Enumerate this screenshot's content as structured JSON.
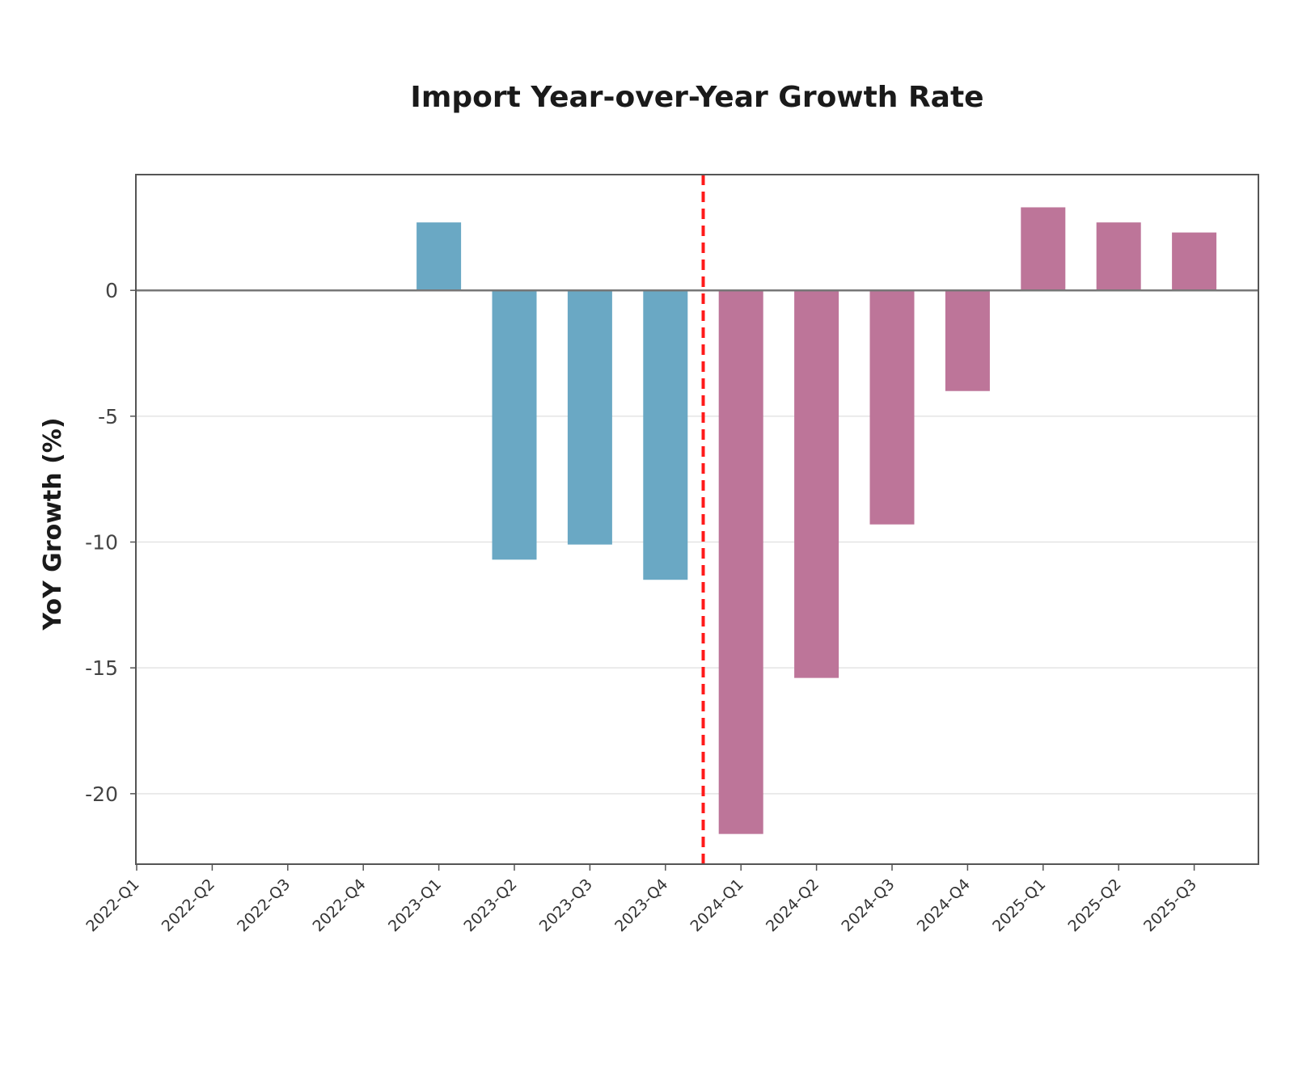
{
  "chart_data": {
    "type": "bar",
    "title": "Import Year-over-Year Growth Rate",
    "xlabel": "",
    "ylabel": "YoY Growth (%)",
    "ylim": [
      -22.8,
      4.6
    ],
    "yticks": [
      0,
      -5,
      -10,
      -15,
      -20
    ],
    "ytick_labels": [
      "0",
      "-5",
      "-10",
      "-15",
      "-20"
    ],
    "grid": true,
    "categories": [
      "2022-Q1",
      "2022-Q2",
      "2022-Q3",
      "2022-Q4",
      "2023-Q1",
      "2023-Q2",
      "2023-Q3",
      "2023-Q4",
      "2024-Q1",
      "2024-Q2",
      "2024-Q3",
      "2024-Q4",
      "2025-Q1",
      "2025-Q2",
      "2025-Q3"
    ],
    "values": [
      null,
      null,
      null,
      null,
      2.7,
      -10.7,
      -10.1,
      -11.5,
      -21.6,
      -15.4,
      -9.3,
      -4.0,
      3.3,
      2.7,
      2.3
    ],
    "bar_color_groups": {
      "before": {
        "categories": [
          "2023-Q1",
          "2023-Q2",
          "2023-Q3",
          "2023-Q4"
        ],
        "color": "#6aa8c4"
      },
      "after": {
        "categories": [
          "2024-Q1",
          "2024-Q2",
          "2024-Q3",
          "2024-Q4",
          "2025-Q1",
          "2025-Q2",
          "2025-Q3"
        ],
        "color": "#bd7599"
      }
    },
    "reference_line": {
      "orientation": "vertical",
      "between": [
        "2023-Q4",
        "2024-Q1"
      ],
      "style": "dashed",
      "color": "#ff1a1a"
    },
    "zero_line": true
  }
}
